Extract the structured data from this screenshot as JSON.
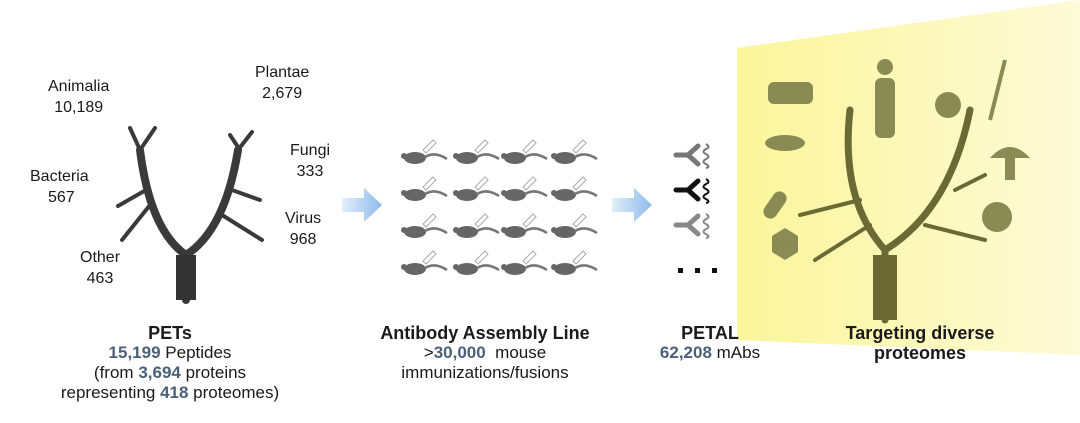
{
  "kingdoms": [
    {
      "name": "Animalia",
      "count": "10,189"
    },
    {
      "name": "Plantae",
      "count": "2,679"
    },
    {
      "name": "Fungi",
      "count": "333"
    },
    {
      "name": "Bacteria",
      "count": "567"
    },
    {
      "name": "Virus",
      "count": "968"
    },
    {
      "name": "Other",
      "count": "463"
    }
  ],
  "pets": {
    "title": "PETs",
    "peptides_num": "15,199",
    "peptides_label": " Peptides",
    "from_prefix": "(from ",
    "proteins_num": "3,694",
    "proteins_label": " proteins",
    "rep_prefix": "representing ",
    "proteomes_num": "418",
    "proteomes_label": " proteomes)"
  },
  "assembly": {
    "title": "Antibody Assembly Line",
    "prefix": ">",
    "num": "30,000",
    "label": "  mouse",
    "line2": "immunizations/fusions"
  },
  "petal": {
    "title": "PETAL",
    "num": "62,208",
    "label": " mAbs"
  },
  "targeting": {
    "line1": "Targeting diverse",
    "line2": "proteomes"
  },
  "colors": {
    "number": "#4a6078",
    "highlight": "#fbf7a8",
    "tree": "#3a3a3a",
    "arrow": "#a9ccef"
  }
}
